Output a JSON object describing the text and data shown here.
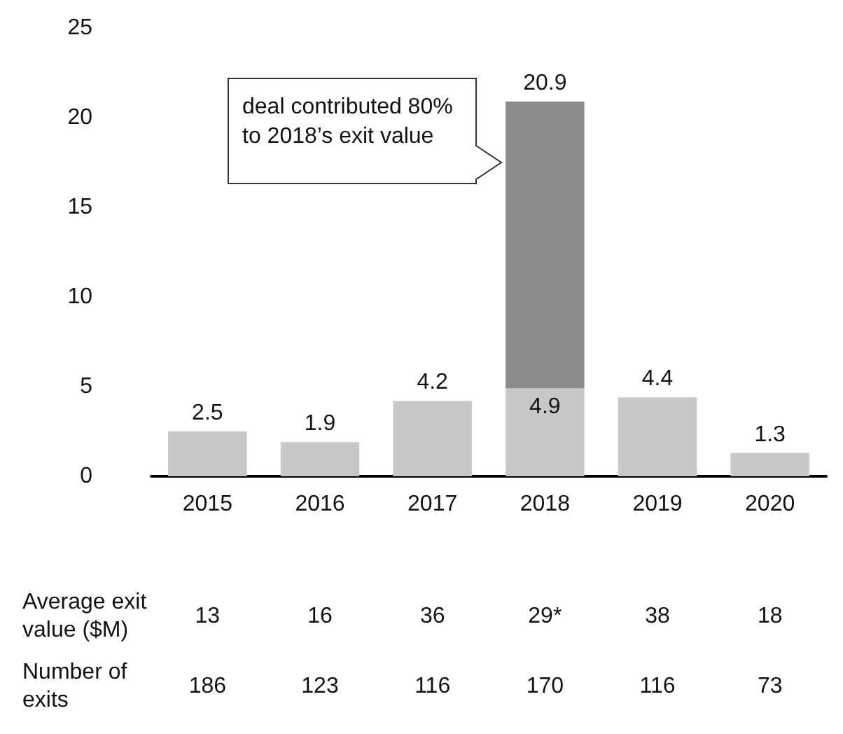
{
  "chart_data": {
    "type": "bar",
    "stacked": true,
    "categories": [
      "2015",
      "2016",
      "2017",
      "2018",
      "2019",
      "2020"
    ],
    "series": [
      {
        "color": "#c8c8c8",
        "values": [
          2.5,
          1.9,
          4.2,
          4.9,
          4.4,
          1.3
        ],
        "value_labels": [
          "2.5",
          "1.9",
          "4.2",
          "4.9",
          "4.4",
          "1.3"
        ]
      },
      {
        "color": "#8c8c8c",
        "values": [
          null,
          null,
          null,
          16.0,
          null,
          null
        ]
      }
    ],
    "totals": [
      null,
      null,
      null,
      "20.9",
      null,
      null
    ],
    "ylim": [
      0,
      25
    ],
    "yticks": [
      0,
      5,
      10,
      15,
      20,
      25
    ],
    "grid": false,
    "annotations": [
      "deal contributed 80% to 2018’s exit value",
      "Average exit value ($M)",
      "13",
      "16",
      "36",
      "29*",
      "38",
      "18",
      "Number of exits",
      "186",
      "123",
      "116",
      "170",
      "116",
      "73"
    ]
  }
}
